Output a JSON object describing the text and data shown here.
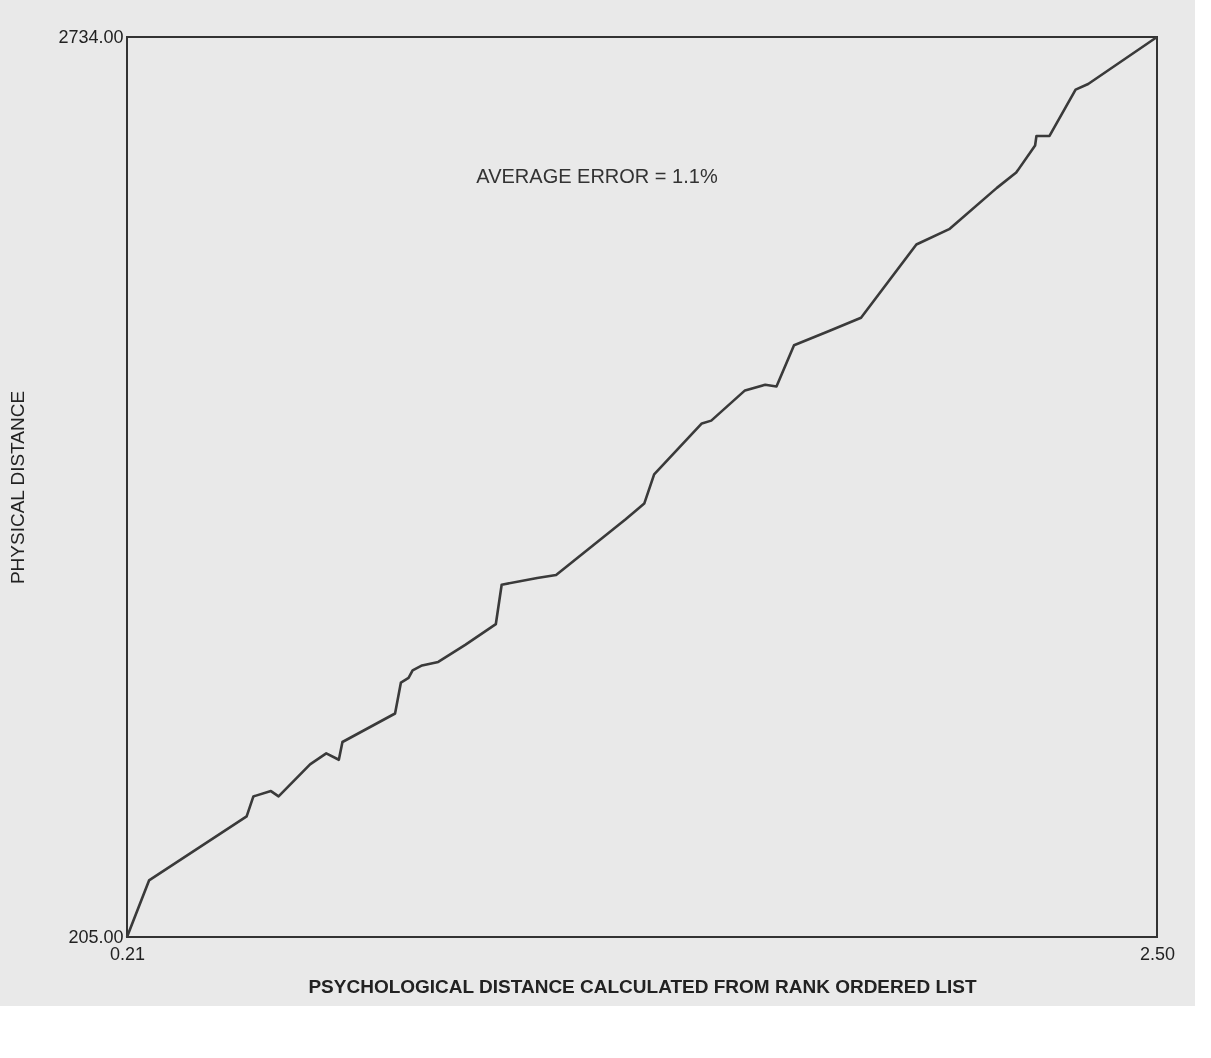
{
  "chart_data": {
    "type": "line",
    "xlabel": "PSYCHOLOGICAL DISTANCE CALCULATED FROM RANK ORDERED LIST",
    "ylabel": "PHYSICAL DISTANCE",
    "annotations": [
      "AVERAGE ERROR = 1.1%"
    ],
    "x": [
      0.21,
      0.259,
      0.476,
      0.491,
      0.53,
      0.547,
      0.617,
      0.653,
      0.681,
      0.689,
      0.806,
      0.819,
      0.836,
      0.845,
      0.866,
      0.902,
      0.962,
      1.03,
      1.043,
      1.122,
      1.164,
      1.318,
      1.36,
      1.382,
      1.488,
      1.509,
      1.584,
      1.629,
      1.654,
      1.693,
      1.771,
      1.842,
      1.965,
      2.038,
      2.144,
      2.187,
      2.229,
      2.232,
      2.261,
      2.319,
      2.347,
      2.5
    ],
    "series": [
      {
        "color": "#3a3a3a",
        "values": [
          205,
          364,
          544,
          600,
          615,
          600,
          690,
          721,
          703,
          753,
          833,
          920,
          933,
          954,
          968,
          978,
          1026,
          1084,
          1195,
          1214,
          1222,
          1378,
          1423,
          1505,
          1648,
          1656,
          1741,
          1757,
          1752,
          1868,
          1908,
          1945,
          2151,
          2194,
          2310,
          2353,
          2429,
          2456,
          2456,
          2586,
          2602,
          2734
        ]
      }
    ],
    "xlim": [
      0.21,
      2.5
    ],
    "ylim": [
      205,
      2734
    ],
    "xticks": [
      0.21,
      {
        "value": 2.5,
        "label": "2.50"
      }
    ],
    "yticks": [
      {
        "value": 205,
        "label": "205.00"
      },
      {
        "value": 2734,
        "label": "2734.00"
      }
    ],
    "grid": false,
    "marker": "none",
    "line_style": "solid"
  }
}
